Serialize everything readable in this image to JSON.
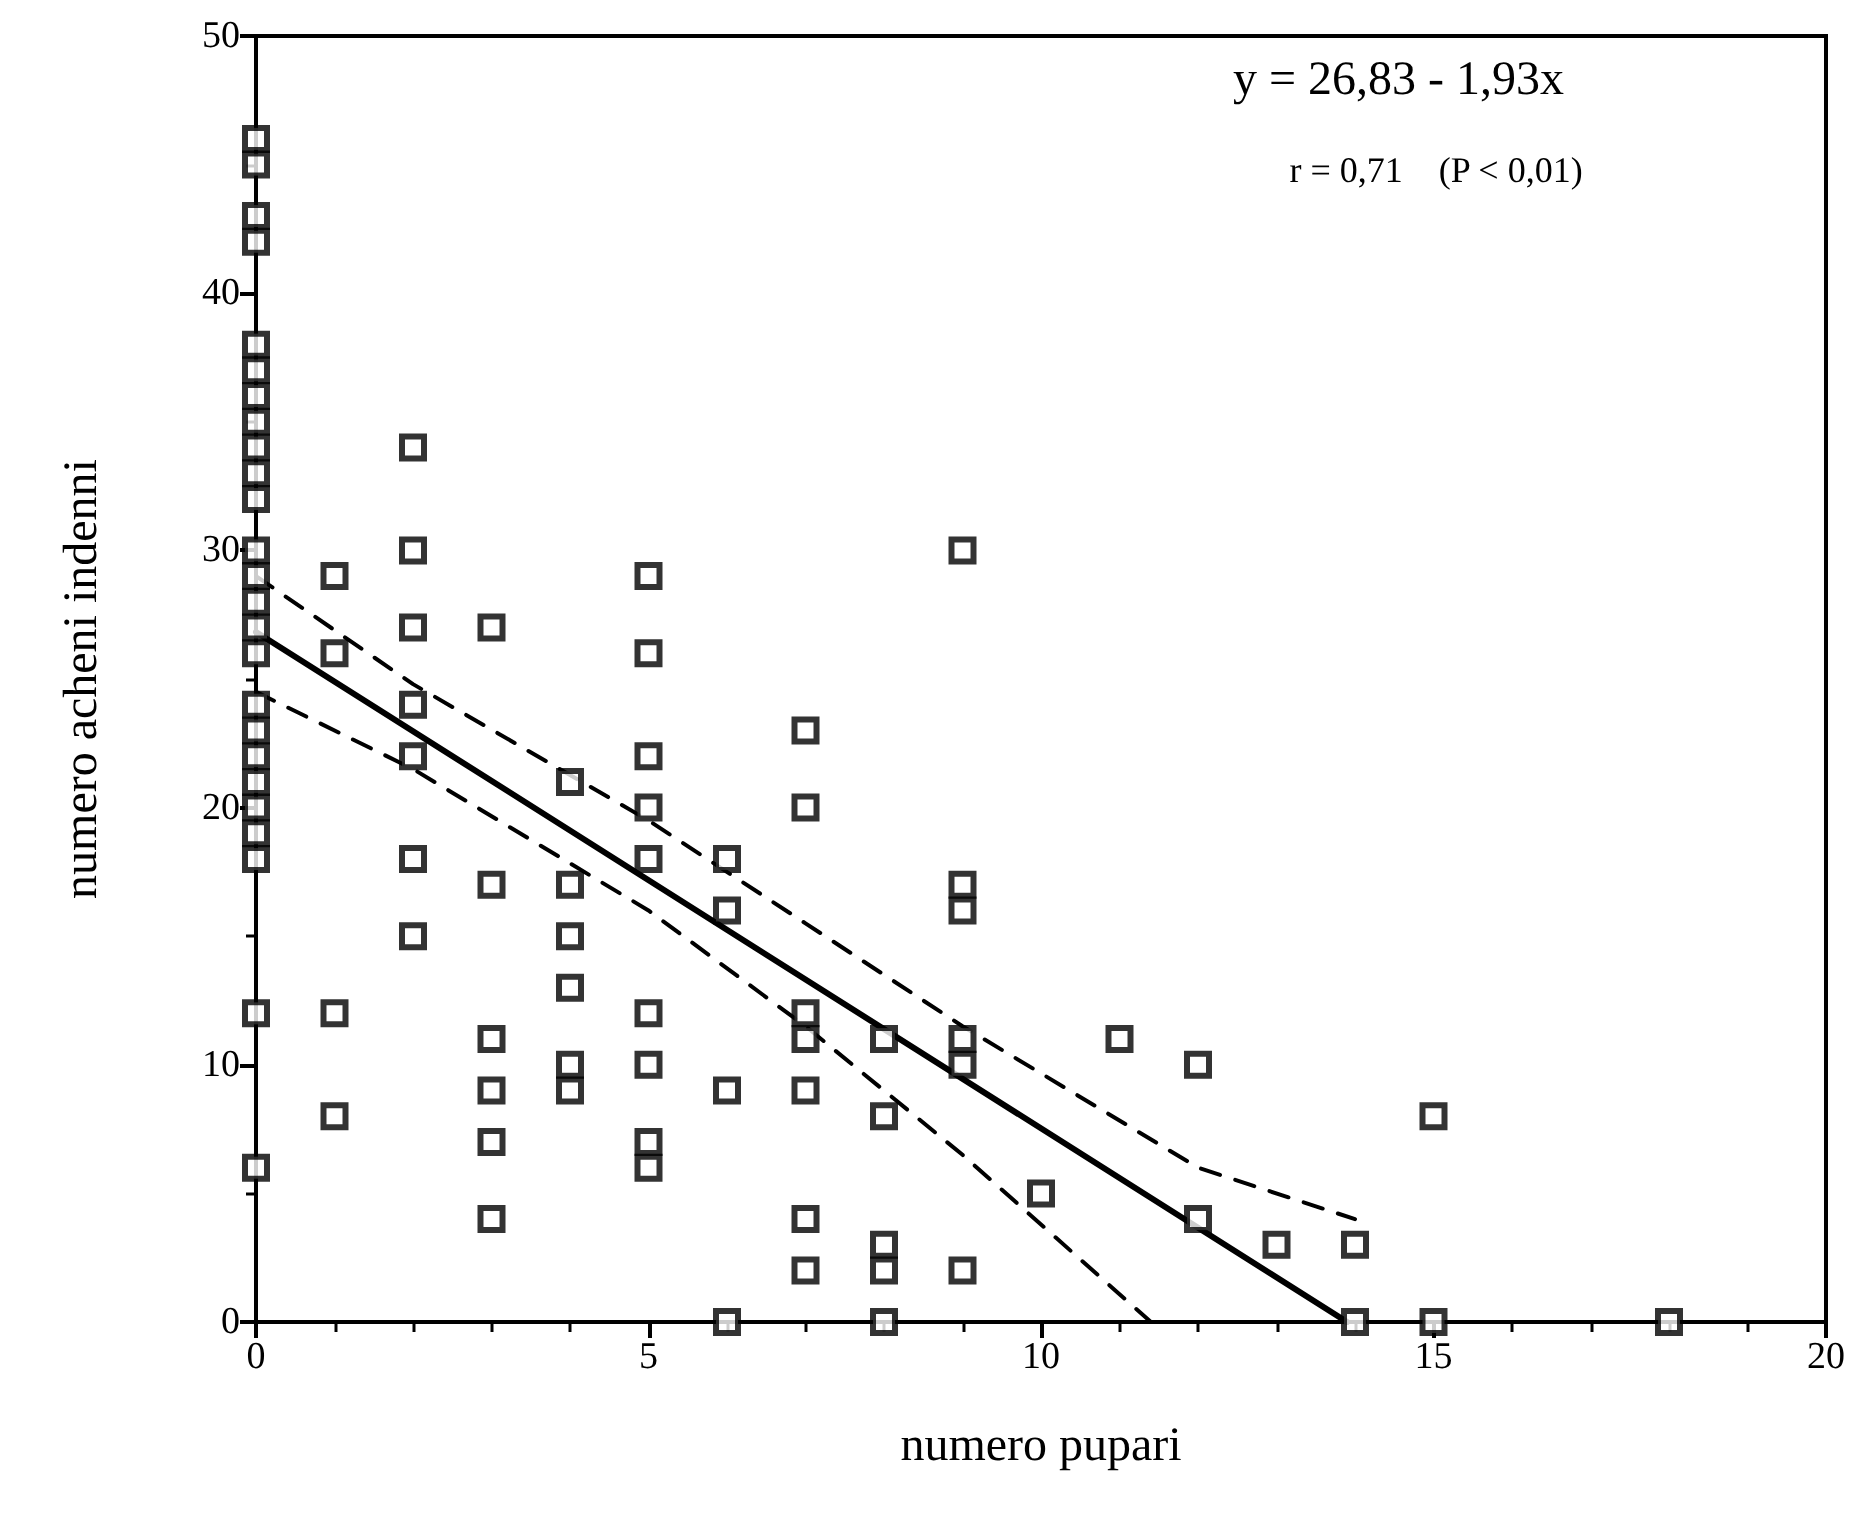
{
  "chart_data": {
    "type": "scatter",
    "xlabel": "numero pupari",
    "ylabel": "numero acheni indenni",
    "xlim": [
      0,
      20
    ],
    "xticks": [
      0,
      5,
      10,
      15,
      20
    ],
    "ylim": [
      0,
      50
    ],
    "yticks": [
      0,
      10,
      20,
      30,
      40,
      50
    ],
    "grid": false,
    "marker": "square",
    "annotations": [
      "y = 26,83 - 1,93x",
      "r = 0,71    (P < 0,01)"
    ],
    "series": [
      {
        "color": "#000000",
        "x": [
          0,
          0,
          0,
          0,
          0,
          0,
          0,
          0,
          0,
          0,
          0,
          0,
          0,
          0,
          0,
          0,
          0,
          0,
          0,
          0,
          0,
          0,
          0,
          0,
          0,
          1,
          1,
          1,
          1,
          2,
          2,
          2,
          2,
          2,
          2,
          2,
          3,
          3,
          3,
          3,
          3,
          3,
          4,
          4,
          4,
          4,
          4,
          4,
          5,
          5,
          5,
          5,
          5,
          5,
          5,
          5,
          5,
          6,
          6,
          6,
          6,
          7,
          7,
          7,
          7,
          7,
          7,
          7,
          8,
          8,
          8,
          8,
          8,
          9,
          9,
          9,
          9,
          9,
          9,
          10,
          11,
          12,
          12,
          13,
          14,
          14,
          15,
          15,
          18
        ],
        "values": [
          46,
          45,
          43,
          42,
          38,
          37,
          36,
          35,
          34,
          33,
          32,
          30,
          29,
          28,
          27,
          26,
          24,
          23,
          22,
          21,
          20,
          19,
          18,
          12,
          6,
          29,
          26,
          12,
          8,
          34,
          30,
          27,
          24,
          22,
          18,
          15,
          27,
          17,
          11,
          9,
          7,
          4,
          21,
          17,
          15,
          13,
          10,
          9,
          29,
          26,
          22,
          20,
          18,
          12,
          10,
          7,
          6,
          18,
          16,
          9,
          0,
          23,
          20,
          12,
          11,
          9,
          4,
          2,
          11,
          8,
          3,
          2,
          0,
          30,
          17,
          16,
          11,
          10,
          2,
          5,
          11,
          10,
          4,
          3,
          3,
          0,
          8,
          0,
          0
        ]
      },
      {
        "type": "line",
        "color": "#000000",
        "marker": "none",
        "line_style": "solid",
        "x": [
          0,
          13.9
        ],
        "values": [
          26.83,
          0
        ]
      },
      {
        "type": "line",
        "color": "#000000",
        "marker": "none",
        "line_style": "dashed",
        "x": [
          0,
          2,
          5,
          7,
          9,
          12,
          14
        ],
        "values": [
          29,
          24.8,
          19.5,
          15.5,
          11.5,
          6,
          4
        ]
      },
      {
        "type": "line",
        "color": "#000000",
        "marker": "none",
        "line_style": "dashed",
        "x": [
          0,
          2,
          5,
          7,
          9,
          11.4
        ],
        "values": [
          24.5,
          21.5,
          16,
          11.5,
          6.5,
          0
        ]
      }
    ]
  }
}
